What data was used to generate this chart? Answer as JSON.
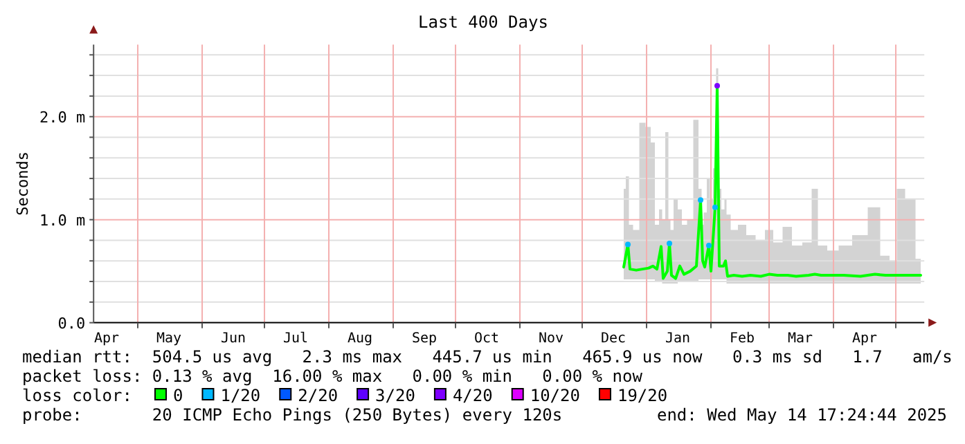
{
  "chart_data": {
    "type": "line",
    "title": "Last 400 Days",
    "ylabel": "Seconds",
    "legend_title": "loss color:",
    "legend": "bottom",
    "grid": true,
    "xlim": [
      "2024-04-09T17:24",
      "2025-05-14T17:24"
    ],
    "xticks": [
      {
        "value": "2024-04-16",
        "label": "Apr"
      },
      {
        "value": "2024-05-01",
        "label": null
      },
      {
        "value": "2024-05-16",
        "label": "May"
      },
      {
        "value": "2024-06-01",
        "label": null
      },
      {
        "value": "2024-06-16",
        "label": "Jun"
      },
      {
        "value": "2024-07-01",
        "label": null
      },
      {
        "value": "2024-07-16",
        "label": "Jul"
      },
      {
        "value": "2024-08-01",
        "label": null
      },
      {
        "value": "2024-08-16",
        "label": "Aug"
      },
      {
        "value": "2024-09-01",
        "label": null
      },
      {
        "value": "2024-09-16",
        "label": "Sep"
      },
      {
        "value": "2024-10-01",
        "label": null
      },
      {
        "value": "2024-10-16",
        "label": "Oct"
      },
      {
        "value": "2024-11-01",
        "label": null
      },
      {
        "value": "2024-11-16",
        "label": "Nov"
      },
      {
        "value": "2024-12-01",
        "label": null
      },
      {
        "value": "2024-12-16",
        "label": "Dec"
      },
      {
        "value": "2025-01-01",
        "label": null
      },
      {
        "value": "2025-01-16",
        "label": "Jan"
      },
      {
        "value": "2025-02-01",
        "label": null
      },
      {
        "value": "2025-02-16",
        "label": "Feb"
      },
      {
        "value": "2025-03-01",
        "label": null
      },
      {
        "value": "2025-03-16",
        "label": "Mar"
      },
      {
        "value": "2025-04-01",
        "label": null
      },
      {
        "value": "2025-04-16",
        "label": "Apr"
      },
      {
        "value": "2025-05-01",
        "label": null
      }
    ],
    "ylim": [
      0,
      2.7
    ],
    "yticks": [
      {
        "value": 0,
        "label": "0.0"
      },
      {
        "value": 0.2,
        "label": null
      },
      {
        "value": 0.4,
        "label": null
      },
      {
        "value": 0.6,
        "label": null
      },
      {
        "value": 0.8,
        "label": null
      },
      {
        "value": 1,
        "label": "1.0 m"
      },
      {
        "value": 1.2,
        "label": null
      },
      {
        "value": 1.4,
        "label": null
      },
      {
        "value": 1.6,
        "label": null
      },
      {
        "value": 1.8,
        "label": null
      },
      {
        "value": 2,
        "label": "2.0 m"
      },
      {
        "value": 2.2,
        "label": null
      },
      {
        "value": 2.4,
        "label": null
      },
      {
        "value": 2.6,
        "label": null
      }
    ],
    "series": [
      {
        "name": "0",
        "type": "line",
        "color": "#00ff00",
        "x": [
          "2024-12-21",
          "2024-12-23",
          "2024-12-24",
          "2024-12-27",
          "2024-12-30",
          "2025-01-02",
          "2025-01-04",
          "2025-01-06",
          "2025-01-08",
          "2025-01-09",
          "2025-01-11",
          "2025-01-12",
          "2025-01-13",
          "2025-01-15",
          "2025-01-17",
          "2025-01-19",
          "2025-01-22",
          "2025-01-25",
          "2025-01-27",
          "2025-01-28",
          "2025-01-29",
          "2025-01-31",
          "2025-02-01",
          "2025-02-03",
          "2025-02-04",
          "2025-02-05",
          "2025-02-07",
          "2025-02-08",
          "2025-02-09",
          "2025-02-12",
          "2025-02-16",
          "2025-02-20",
          "2025-02-25",
          "2025-03-01",
          "2025-03-05",
          "2025-03-10",
          "2025-03-14",
          "2025-03-20",
          "2025-03-23",
          "2025-03-26",
          "2025-04-01",
          "2025-04-06",
          "2025-04-14",
          "2025-04-21",
          "2025-04-26",
          "2025-04-30",
          "2025-05-03",
          "2025-05-08",
          "2025-05-13"
        ],
        "values": [
          0.54,
          0.76,
          0.52,
          0.51,
          0.52,
          0.53,
          0.55,
          0.52,
          0.74,
          0.43,
          0.5,
          0.77,
          0.46,
          0.43,
          0.55,
          0.47,
          0.5,
          0.55,
          1.19,
          0.6,
          0.54,
          0.75,
          0.5,
          1.12,
          2.3,
          0.55,
          0.55,
          0.6,
          0.45,
          0.46,
          0.45,
          0.46,
          0.45,
          0.47,
          0.46,
          0.46,
          0.45,
          0.46,
          0.47,
          0.46,
          0.46,
          0.46,
          0.45,
          0.47,
          0.46,
          0.46,
          0.46,
          0.46,
          0.46
        ],
        "lower": [
          0.42,
          0.42,
          0.42,
          0.42,
          0.42,
          0.42,
          0.42,
          0.4,
          0.4,
          0.38,
          0.38,
          0.38,
          0.38,
          0.38,
          0.4,
          0.4,
          0.4,
          0.4,
          0.42,
          0.42,
          0.42,
          0.42,
          0.42,
          0.42,
          0.42,
          0.42,
          0.42,
          0.42,
          0.38,
          0.38,
          0.38,
          0.38,
          0.38,
          0.38,
          0.38,
          0.38,
          0.38,
          0.38,
          0.38,
          0.38,
          0.38,
          0.38,
          0.38,
          0.38,
          0.38,
          0.38,
          0.38,
          0.38,
          0.38
        ],
        "upper": [
          1.3,
          1.42,
          0.95,
          0.9,
          1.94,
          1.9,
          1.75,
          0.95,
          1.1,
          1.0,
          1.85,
          1.0,
          0.9,
          1.2,
          1.1,
          0.95,
          1.0,
          1.97,
          1.3,
          0.95,
          1.07,
          1.4,
          1.2,
          1.5,
          2.47,
          1.3,
          1.1,
          1.2,
          1.05,
          0.9,
          0.95,
          0.85,
          0.8,
          0.9,
          0.78,
          0.93,
          0.75,
          0.78,
          1.3,
          0.75,
          0.7,
          0.75,
          0.85,
          1.12,
          0.65,
          0.6,
          1.3,
          1.2,
          0.62
        ]
      },
      {
        "name": "1/20",
        "type": "scatter",
        "color": "#00b8ff",
        "x": [
          "2024-12-23",
          "2025-01-12",
          "2025-01-27",
          "2025-01-31",
          "2025-02-03"
        ],
        "values": [
          0.76,
          0.77,
          1.19,
          0.75,
          1.12
        ]
      },
      {
        "name": "2/20",
        "type": "scatter",
        "color": "#0059ff"
      },
      {
        "name": "3/20",
        "type": "scatter",
        "color": "#5e00ff"
      },
      {
        "name": "4/20",
        "type": "scatter",
        "color": "#7e00ff",
        "x": [
          "2025-02-04"
        ],
        "values": [
          2.3
        ]
      },
      {
        "name": "10/20",
        "type": "scatter",
        "color": "#dd00ff"
      },
      {
        "name": "19/20",
        "type": "scatter",
        "color": "#ff0000"
      }
    ],
    "annotations": [
      "median rtt:  504.5 us avg   2.3 ms max   445.7 us min   465.9 us now   0.3 ms sd   1.7   am/s",
      "packet loss: 0.13 % avg  16.00 % max   0.00 % min   0.00 % now",
      "probe:       20 ICMP Echo Pings (250 Bytes) every 120s",
      "end: Wed May 14 17:24:44 2025"
    ]
  }
}
